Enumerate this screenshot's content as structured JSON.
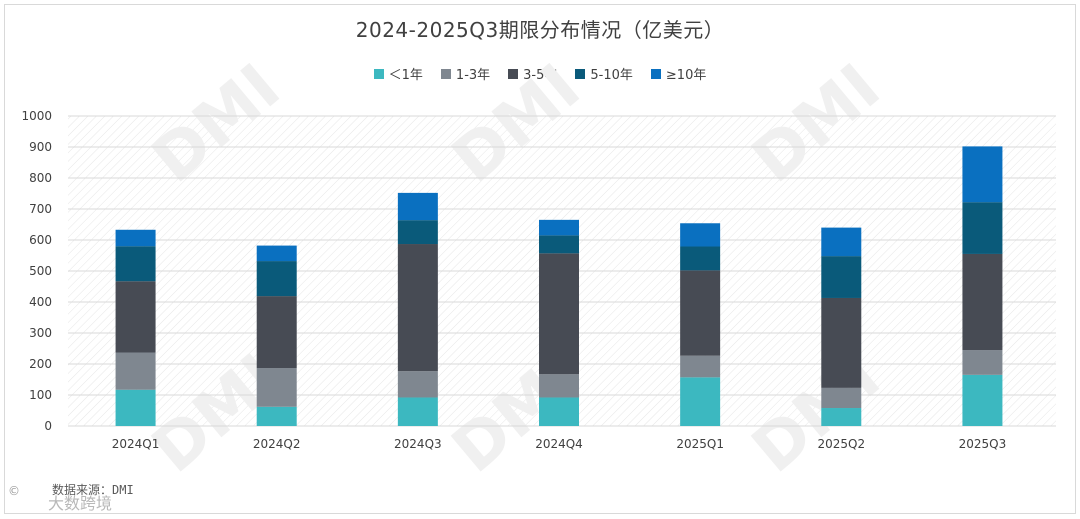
{
  "chart_data": {
    "type": "stacked-bar",
    "title": "2024-2025Q3期限分布情况（亿美元）",
    "categories": [
      "2024Q1",
      "2024Q2",
      "2024Q3",
      "2024Q4",
      "2025Q1",
      "2025Q2",
      "2025Q3"
    ],
    "series": [
      {
        "name": "＜1年",
        "color": "#3cb8c0",
        "values": [
          117,
          62,
          92,
          92,
          157,
          58,
          165
        ]
      },
      {
        "name": "1-3年",
        "color": "#7f8790",
        "values": [
          120,
          125,
          85,
          75,
          70,
          65,
          80
        ]
      },
      {
        "name": "3-5年",
        "color": "#474b54",
        "values": [
          230,
          232,
          410,
          390,
          275,
          290,
          310
        ]
      },
      {
        "name": "5-10年",
        "color": "#0a5a7a",
        "values": [
          113,
          113,
          77,
          58,
          77,
          135,
          167
        ]
      },
      {
        "name": "≥10年",
        "color": "#0a70c0",
        "values": [
          53,
          50,
          88,
          50,
          75,
          92,
          180
        ]
      }
    ],
    "ylim": [
      0,
      1000
    ],
    "yticks": [
      0,
      100,
      200,
      300,
      400,
      500,
      600,
      700,
      800,
      900,
      1000
    ],
    "xlabel": "",
    "ylabel": "",
    "legend_position": "top-center",
    "grid": true
  },
  "source": "数据来源：DMI",
  "watermark": {
    "logo": "©",
    "text": "大数跨境",
    "background": "DMI"
  }
}
